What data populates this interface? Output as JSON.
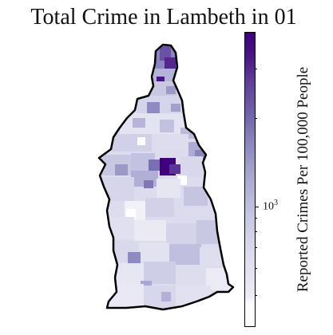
{
  "title": "Total Crime in Lambeth in 01",
  "borough": "Lambeth",
  "colorbar": {
    "label": "Reported Crimes Per 100,000 People",
    "scale": "log",
    "colormap": "Purples",
    "major_tick_base": "10",
    "major_tick_exponent": "3"
  },
  "colors": {
    "low": "#fcfbfd",
    "mid": "#a7a5cf",
    "high": "#3f007d",
    "outline": "#000000"
  }
}
